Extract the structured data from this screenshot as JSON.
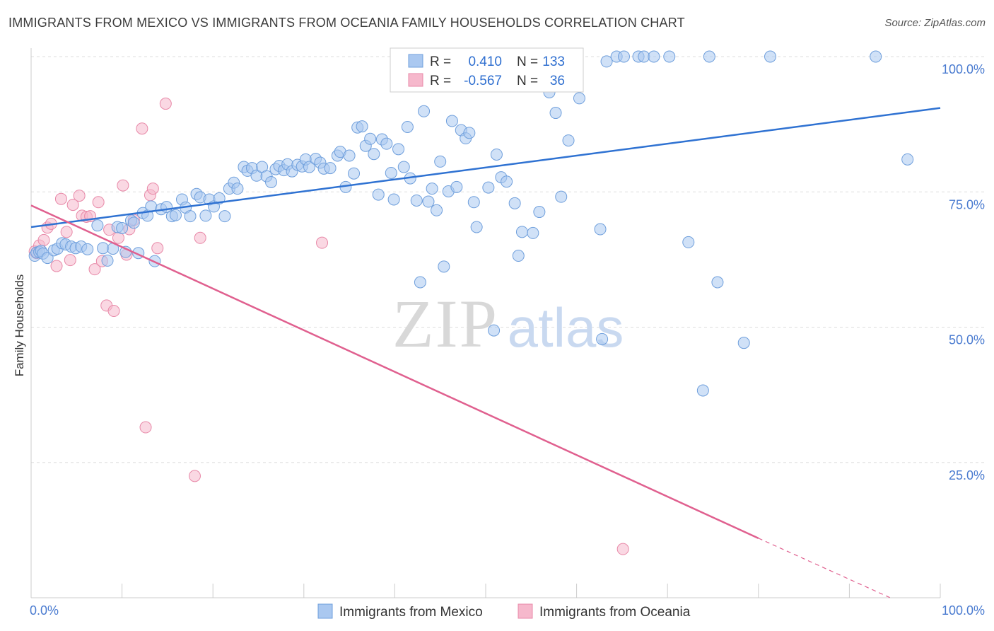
{
  "header": {
    "title": "IMMIGRANTS FROM MEXICO VS IMMIGRANTS FROM OCEANIA FAMILY HOUSEHOLDS CORRELATION CHART",
    "source": "Source: ZipAtlas.com"
  },
  "watermark": {
    "zip": "ZIP",
    "atlas": "atlas"
  },
  "colors": {
    "mexico_fill": "#aac8f0",
    "mexico_stroke": "#6f9fdc",
    "mexico_line": "#2f72d2",
    "oceania_fill": "#f6b8cc",
    "oceania_stroke": "#e889a8",
    "oceania_line": "#e0608f",
    "axis_text": "#4a7bd0",
    "grid": "#dddddd"
  },
  "legend": {
    "rows": [
      {
        "r_label": "R =",
        "r_value": "0.410",
        "n_label": "N =",
        "n_value": "133"
      },
      {
        "r_label": "R =",
        "r_value": "-0.567",
        "n_label": "N =",
        "n_value": "36"
      }
    ]
  },
  "bottom_legend": {
    "series1": "Immigrants from Mexico",
    "series2": "Immigrants from Oceania"
  },
  "chart_data": {
    "type": "scatter",
    "title": "IMMIGRANTS FROM MEXICO VS IMMIGRANTS FROM OCEANIA FAMILY HOUSEHOLDS CORRELATION CHART",
    "xlabel": "",
    "ylabel": "Family Households",
    "xlim": [
      0,
      100
    ],
    "ylim": [
      0,
      100
    ],
    "x_tick_labels": [
      "0.0%",
      "100.0%"
    ],
    "y_ticks": [
      25,
      50,
      75,
      100
    ],
    "y_tick_labels": [
      "25.0%",
      "50.0%",
      "75.0%",
      "100.0%"
    ],
    "grid": true,
    "series": [
      {
        "name": "Immigrants from Mexico",
        "r": 0.41,
        "n": 133,
        "trend": {
          "x": [
            0,
            100
          ],
          "y": [
            68.5,
            90.5
          ]
        },
        "points": [
          [
            0.4,
            63.2
          ],
          [
            0.6,
            63.8
          ],
          [
            0.9,
            63.9
          ],
          [
            1.1,
            64.1
          ],
          [
            1.3,
            63.6
          ],
          [
            1.8,
            62.8
          ],
          [
            2.5,
            64.2
          ],
          [
            2.9,
            64.5
          ],
          [
            3.4,
            65.5
          ],
          [
            3.8,
            65.3
          ],
          [
            4.4,
            64.9
          ],
          [
            4.9,
            64.6
          ],
          [
            5.5,
            64.9
          ],
          [
            6.2,
            64.4
          ],
          [
            7.3,
            68.8
          ],
          [
            7.9,
            64.6
          ],
          [
            8.4,
            62.3
          ],
          [
            9.0,
            64.5
          ],
          [
            9.5,
            68.5
          ],
          [
            10.0,
            68.3
          ],
          [
            10.4,
            63.9
          ],
          [
            11.0,
            69.7
          ],
          [
            11.3,
            69.3
          ],
          [
            11.8,
            63.7
          ],
          [
            12.3,
            71.1
          ],
          [
            12.8,
            70.6
          ],
          [
            13.2,
            72.3
          ],
          [
            13.6,
            62.2
          ],
          [
            14.3,
            71.8
          ],
          [
            14.9,
            72.2
          ],
          [
            15.5,
            70.5
          ],
          [
            15.9,
            70.7
          ],
          [
            16.6,
            73.6
          ],
          [
            17.0,
            72.1
          ],
          [
            17.5,
            70.5
          ],
          [
            18.2,
            74.6
          ],
          [
            18.6,
            74.0
          ],
          [
            19.2,
            70.6
          ],
          [
            19.6,
            73.6
          ],
          [
            20.1,
            72.3
          ],
          [
            20.7,
            73.8
          ],
          [
            21.3,
            70.5
          ],
          [
            21.8,
            75.6
          ],
          [
            22.3,
            76.7
          ],
          [
            22.7,
            75.6
          ],
          [
            23.4,
            79.6
          ],
          [
            23.8,
            78.9
          ],
          [
            24.3,
            79.4
          ],
          [
            24.8,
            78.0
          ],
          [
            25.4,
            79.6
          ],
          [
            25.9,
            77.9
          ],
          [
            26.4,
            76.8
          ],
          [
            26.9,
            79.2
          ],
          [
            27.3,
            79.8
          ],
          [
            27.8,
            79.0
          ],
          [
            28.2,
            80.1
          ],
          [
            28.7,
            78.8
          ],
          [
            29.3,
            80.0
          ],
          [
            29.8,
            79.7
          ],
          [
            30.2,
            81.0
          ],
          [
            30.6,
            79.6
          ],
          [
            31.3,
            81.1
          ],
          [
            31.8,
            80.4
          ],
          [
            32.2,
            79.3
          ],
          [
            32.9,
            79.4
          ],
          [
            33.7,
            81.7
          ],
          [
            34.0,
            82.4
          ],
          [
            34.6,
            75.9
          ],
          [
            35.0,
            81.7
          ],
          [
            35.5,
            78.4
          ],
          [
            35.9,
            86.9
          ],
          [
            36.4,
            87.1
          ],
          [
            36.8,
            83.5
          ],
          [
            37.3,
            84.8
          ],
          [
            37.7,
            82.0
          ],
          [
            38.2,
            74.5
          ],
          [
            38.6,
            84.7
          ],
          [
            39.1,
            83.9
          ],
          [
            39.6,
            78.5
          ],
          [
            39.9,
            73.6
          ],
          [
            40.4,
            82.9
          ],
          [
            41.0,
            79.6
          ],
          [
            41.4,
            87.0
          ],
          [
            41.7,
            77.5
          ],
          [
            42.4,
            73.4
          ],
          [
            42.8,
            58.3
          ],
          [
            43.2,
            89.9
          ],
          [
            43.7,
            73.2
          ],
          [
            44.1,
            75.6
          ],
          [
            44.6,
            71.6
          ],
          [
            45.0,
            80.6
          ],
          [
            45.4,
            61.2
          ],
          [
            45.9,
            75.1
          ],
          [
            46.3,
            88.1
          ],
          [
            46.8,
            75.9
          ],
          [
            47.3,
            86.4
          ],
          [
            47.8,
            84.9
          ],
          [
            48.2,
            85.9
          ],
          [
            48.7,
            73.1
          ],
          [
            49.0,
            68.5
          ],
          [
            49.6,
            95.9
          ],
          [
            50.3,
            75.8
          ],
          [
            50.9,
            49.4
          ],
          [
            51.2,
            81.9
          ],
          [
            51.7,
            77.7
          ],
          [
            52.3,
            76.9
          ],
          [
            53.2,
            72.9
          ],
          [
            53.6,
            63.2
          ],
          [
            54.0,
            67.6
          ],
          [
            55.2,
            67.4
          ],
          [
            55.9,
            71.3
          ],
          [
            57.0,
            93.4
          ],
          [
            57.7,
            89.6
          ],
          [
            58.3,
            74.1
          ],
          [
            59.1,
            84.5
          ],
          [
            60.3,
            92.3
          ],
          [
            62.6,
            68.1
          ],
          [
            62.8,
            47.8
          ],
          [
            63.3,
            99.1
          ],
          [
            64.4,
            100.0
          ],
          [
            65.2,
            100.0
          ],
          [
            66.8,
            100.0
          ],
          [
            67.4,
            100.0
          ],
          [
            68.5,
            100.0
          ],
          [
            70.2,
            100.0
          ],
          [
            72.3,
            65.7
          ],
          [
            73.9,
            38.3
          ],
          [
            74.6,
            100.0
          ],
          [
            75.5,
            58.3
          ],
          [
            78.4,
            47.1
          ],
          [
            81.3,
            100.0
          ],
          [
            92.9,
            100.0
          ],
          [
            96.4,
            81.0
          ]
        ]
      },
      {
        "name": "Immigrants from Oceania",
        "r": -0.567,
        "n": 36,
        "trend": {
          "x": [
            0,
            80
          ],
          "y": [
            72.5,
            11.0
          ]
        },
        "trend_dashed": {
          "x": [
            80,
            94.5
          ],
          "y": [
            11.0,
            0.0
          ]
        },
        "points": [
          [
            0.4,
            64.0
          ],
          [
            0.9,
            65.1
          ],
          [
            1.4,
            66.1
          ],
          [
            1.8,
            68.4
          ],
          [
            2.2,
            69.1
          ],
          [
            2.8,
            61.3
          ],
          [
            3.3,
            73.7
          ],
          [
            3.9,
            67.6
          ],
          [
            4.3,
            62.4
          ],
          [
            4.6,
            72.6
          ],
          [
            5.3,
            74.3
          ],
          [
            5.6,
            70.6
          ],
          [
            6.1,
            70.4
          ],
          [
            6.5,
            70.5
          ],
          [
            7.0,
            60.7
          ],
          [
            7.4,
            73.1
          ],
          [
            7.8,
            62.2
          ],
          [
            8.3,
            54.0
          ],
          [
            8.6,
            68.0
          ],
          [
            9.1,
            53.0
          ],
          [
            9.6,
            66.5
          ],
          [
            10.1,
            76.2
          ],
          [
            10.5,
            63.4
          ],
          [
            10.8,
            68.1
          ],
          [
            11.3,
            69.8
          ],
          [
            12.2,
            86.7
          ],
          [
            12.6,
            31.5
          ],
          [
            13.1,
            74.4
          ],
          [
            13.4,
            75.6
          ],
          [
            13.9,
            64.6
          ],
          [
            14.8,
            91.3
          ],
          [
            18.0,
            22.5
          ],
          [
            18.6,
            66.5
          ],
          [
            32.0,
            65.6
          ],
          [
            65.1,
            9.0
          ],
          [
            0.6,
            63.7
          ]
        ]
      }
    ]
  }
}
